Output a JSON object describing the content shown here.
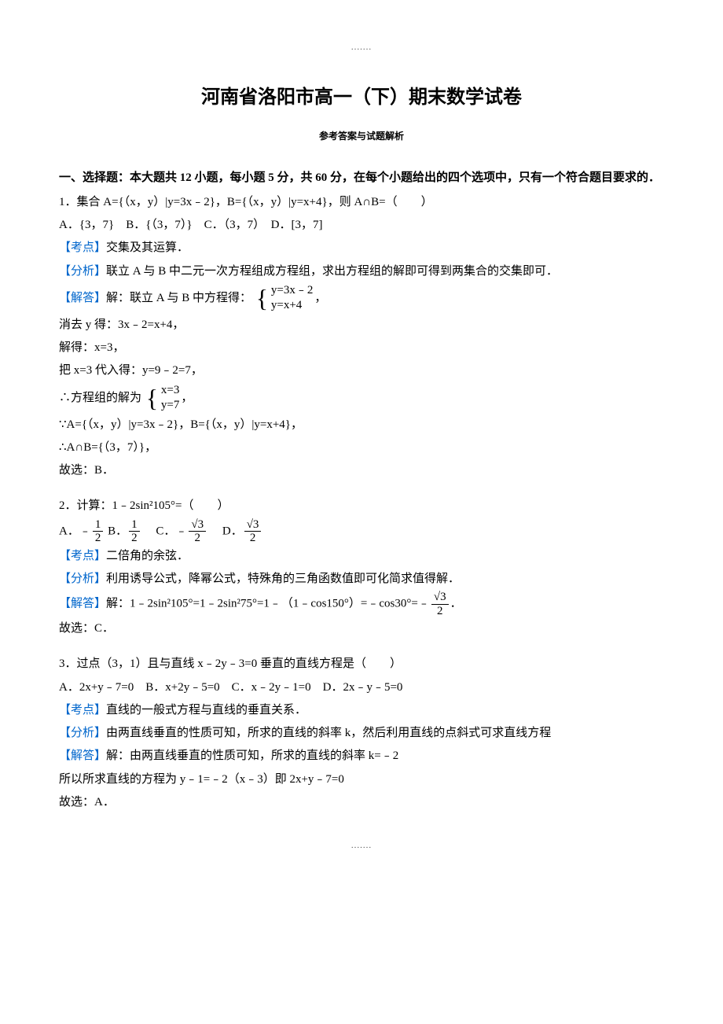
{
  "dots": ".......",
  "title": "河南省洛阳市高一（下）期末数学试卷",
  "subtitle": "参考答案与试题解析",
  "section": "一、选择题：本大题共 12 小题，每小题 5 分，共 60 分，在每个小题给出的四个选项中，只有一个符合题目要求的．",
  "labels": {
    "kaodian": "【考点】",
    "fenxi": "【分析】",
    "jieda": "【解答】"
  },
  "q1": {
    "stem": "1．集合 A={（x，y）|y=3x﹣2}，B={（x，y）|y=x+4}，则 A∩B=（　　）",
    "options": "A．{3，7}　B．{（3，7）}　C．（3，7）　D．[3，7]",
    "kaodian": "交集及其运算．",
    "fenxi": "联立 A 与 B 中二元一次方程组成方程组，求出方程组的解即可得到两集合的交集即可．",
    "jieda_pre": "解：联立 A 与 B 中方程得：",
    "sys_a": "y=3x﹣2",
    "sys_b": "y=x+4",
    "comma": "，",
    "s1": "消去 y 得：3x﹣2=x+4，",
    "s2": "解得：x=3，",
    "s3": "把 x=3 代入得：y=9﹣2=7，",
    "s4_pre": "∴方程组的解为",
    "sys2_a": "x=3",
    "sys2_b": "y=7",
    "s4_post": "，",
    "s5": "∵A={（x，y）|y=3x﹣2}，B={（x，y）|y=x+4}，",
    "s6": "∴A∩B={（3，7）}，",
    "s7": "故选：B．"
  },
  "q2": {
    "stem": "2．计算：1﹣2sin²105°=（　　）",
    "opt_a_pre": "A．﹣",
    "opt_b_pre": " B．",
    "opt_c_pre": "　C．﹣",
    "opt_d_pre": "　D．",
    "frac_1": "1",
    "frac_2": "2",
    "frac_s3": "√3",
    "kaodian": "二倍角的余弦．",
    "fenxi": "利用诱导公式，降幂公式，特殊角的三角函数值即可化简求值得解．",
    "jieda_pre": "解：1﹣2sin²105°=1﹣2sin²75°=1﹣（1﹣cos150°）=﹣cos30°=﹣",
    "jieda_post": "．",
    "s1": "故选：C．"
  },
  "q3": {
    "stem": "3．过点（3，1）且与直线 x﹣2y﹣3=0 垂直的直线方程是（　　）",
    "options": "A．2x+y﹣7=0　B．x+2y﹣5=0　C．x﹣2y﹣1=0　D．2x﹣y﹣5=0",
    "kaodian": "直线的一般式方程与直线的垂直关系．",
    "fenxi": "由两直线垂直的性质可知，所求的直线的斜率 k，然后利用直线的点斜式可求直线方程",
    "jieda": "解：由两直线垂直的性质可知，所求的直线的斜率 k=﹣2",
    "s1": "所以所求直线的方程为 y﹣1=﹣2（x﹣3）即 2x+y﹣7=0",
    "s2": "故选：A．"
  },
  "colors": {
    "text": "#000000",
    "accent": "#0066cc",
    "bg": "#ffffff"
  }
}
